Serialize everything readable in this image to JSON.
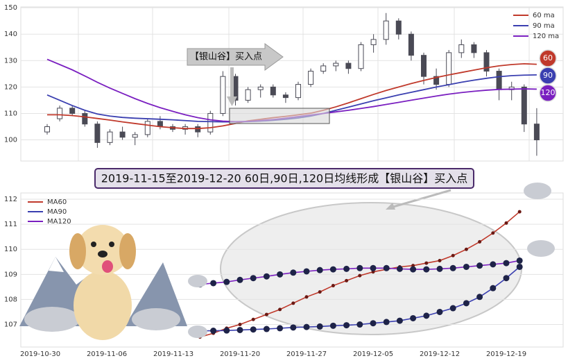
{
  "banner": "2019-11-15至2019-12-20 60日,90日,120日均线形成【银山谷】买入点",
  "chart_data": [
    {
      "type": "candlestick",
      "annotation": "【银山谷】买入点",
      "ylim": [
        92,
        150.3
      ],
      "yticks": [
        100,
        110,
        120,
        130,
        140,
        150
      ],
      "grid": true,
      "up_color": "#ffffff",
      "down_color": "#4a4a55",
      "open": [
        103,
        108,
        112,
        110,
        106,
        99,
        103,
        101,
        102,
        107,
        105,
        104,
        105,
        103,
        110,
        124,
        115,
        119,
        120,
        117,
        116,
        121,
        126,
        128,
        129,
        127,
        136,
        138,
        145,
        140,
        132,
        124,
        121,
        133,
        136,
        133,
        126,
        119,
        120,
        106
      ],
      "high": [
        106,
        113,
        113,
        111,
        107,
        104,
        105,
        103,
        108,
        109,
        106,
        106,
        106,
        111,
        126,
        125,
        120,
        121,
        121,
        118,
        122,
        127,
        129,
        130,
        130,
        137,
        140,
        148,
        146,
        141,
        133,
        127,
        134,
        138,
        137,
        134,
        127,
        122,
        121,
        112
      ],
      "low": [
        102,
        107,
        109,
        105,
        97,
        98,
        100,
        98,
        101,
        104,
        103,
        102,
        101,
        102,
        109,
        113,
        114,
        116,
        116,
        114,
        115,
        120,
        125,
        126,
        125,
        126,
        133,
        136,
        138,
        130,
        121,
        119,
        120,
        131,
        131,
        124,
        115,
        115,
        103,
        94
      ],
      "close": [
        105,
        112,
        110,
        106,
        99,
        103,
        101,
        102,
        107,
        105,
        104,
        105,
        103,
        110,
        124,
        115,
        119,
        120,
        117,
        116,
        121,
        126,
        128,
        129,
        127,
        136,
        138,
        145,
        140,
        132,
        124,
        121,
        133,
        136,
        133,
        126,
        119,
        120,
        106,
        100
      ],
      "series": [
        {
          "name": "60 ma",
          "color": "#c0392b",
          "badge": 60,
          "values": [
            109.5,
            109.5,
            109.2,
            108.7,
            108.1,
            107.5,
            106.8,
            106.2,
            105.6,
            105.0,
            104.6,
            104.3,
            104.3,
            104.6,
            105.3,
            106.2,
            107.2,
            107.8,
            108.4,
            108.9,
            109.5,
            110.1,
            111.2,
            112.5,
            114.0,
            115.6,
            117.2,
            118.7,
            120.0,
            121.3,
            122.5,
            123.6,
            124.6,
            125.5,
            126.4,
            127.3,
            128.0,
            128.5,
            128.8,
            128.6
          ]
        },
        {
          "name": "90 ma",
          "color": "#3a3fb0",
          "badge": 90,
          "values": [
            117,
            115,
            113,
            111.2,
            109.8,
            109.0,
            108.5,
            108.2,
            108.0,
            107.8,
            107.6,
            107.3,
            107.0,
            106.9,
            106.8,
            106.8,
            106.9,
            107.1,
            107.4,
            107.8,
            108.3,
            109.0,
            110.0,
            111.2,
            112.4,
            113.6,
            114.8,
            115.9,
            117.0,
            118.0,
            119.0,
            120.0,
            120.9,
            121.8,
            122.6,
            123.3,
            123.9,
            124.3,
            124.5,
            124.6
          ]
        },
        {
          "name": "120 ma",
          "color": "#7a1fc0",
          "badge": 120,
          "values": [
            130.5,
            128.5,
            126.5,
            124.2,
            121.8,
            119.6,
            117.6,
            115.6,
            113.8,
            112.2,
            110.8,
            109.5,
            108.4,
            107.6,
            107.1,
            106.9,
            107.0,
            107.3,
            107.7,
            108.2,
            108.8,
            109.4,
            110.0,
            110.6,
            111.2,
            111.9,
            112.6,
            113.4,
            114.2,
            115.0,
            115.8,
            116.6,
            117.3,
            117.9,
            118.4,
            118.8,
            119.1,
            119.2,
            119.3,
            119.2
          ]
        }
      ]
    },
    {
      "type": "line",
      "ylim": [
        106.1,
        112.25
      ],
      "yticks": [
        107,
        108,
        109,
        110,
        111,
        112
      ],
      "grid": true,
      "categories": [
        "2019-10-30",
        null,
        null,
        null,
        null,
        "2019-11-06",
        null,
        null,
        null,
        null,
        "2019-11-13",
        null,
        null,
        null,
        null,
        "2019-11-20",
        null,
        null,
        null,
        null,
        "2019-11-27",
        null,
        null,
        null,
        null,
        "2019-12-05",
        null,
        null,
        null,
        null,
        "2019-12-12",
        null,
        null,
        null,
        null,
        "2019-12-19",
        null
      ],
      "series": [
        {
          "name": "MA60",
          "color": "#c0392b",
          "marker_color": "#6b1a14",
          "values": [
            null,
            null,
            null,
            null,
            null,
            null,
            null,
            null,
            null,
            null,
            null,
            null,
            106.5,
            106.65,
            106.85,
            107.0,
            107.2,
            107.4,
            107.6,
            107.85,
            108.1,
            108.3,
            108.55,
            108.75,
            108.95,
            109.1,
            109.2,
            109.3,
            109.35,
            109.45,
            109.55,
            109.75,
            110.0,
            110.3,
            110.65,
            111.05,
            111.5
          ]
        },
        {
          "name": "MA90",
          "color": "#3a3fb0",
          "marker_color": "#1e2348",
          "values": [
            null,
            null,
            null,
            null,
            null,
            null,
            null,
            null,
            null,
            null,
            null,
            null,
            106.75,
            106.75,
            106.76,
            106.78,
            106.8,
            106.82,
            106.85,
            106.88,
            106.9,
            106.92,
            106.95,
            106.97,
            107.0,
            107.05,
            107.1,
            107.15,
            107.25,
            107.35,
            107.5,
            107.65,
            107.85,
            108.1,
            108.45,
            108.85,
            109.3
          ]
        },
        {
          "name": "MA120",
          "color": "#7a1fc0",
          "marker_color": "#1e2348",
          "values": [
            null,
            null,
            null,
            null,
            null,
            null,
            null,
            null,
            null,
            null,
            null,
            null,
            108.6,
            108.65,
            108.7,
            108.78,
            108.85,
            108.92,
            109.0,
            109.07,
            109.12,
            109.17,
            109.2,
            109.22,
            109.25,
            109.25,
            109.25,
            109.22,
            109.2,
            109.2,
            109.22,
            109.25,
            109.3,
            109.35,
            109.4,
            109.45,
            109.55
          ]
        }
      ]
    }
  ]
}
